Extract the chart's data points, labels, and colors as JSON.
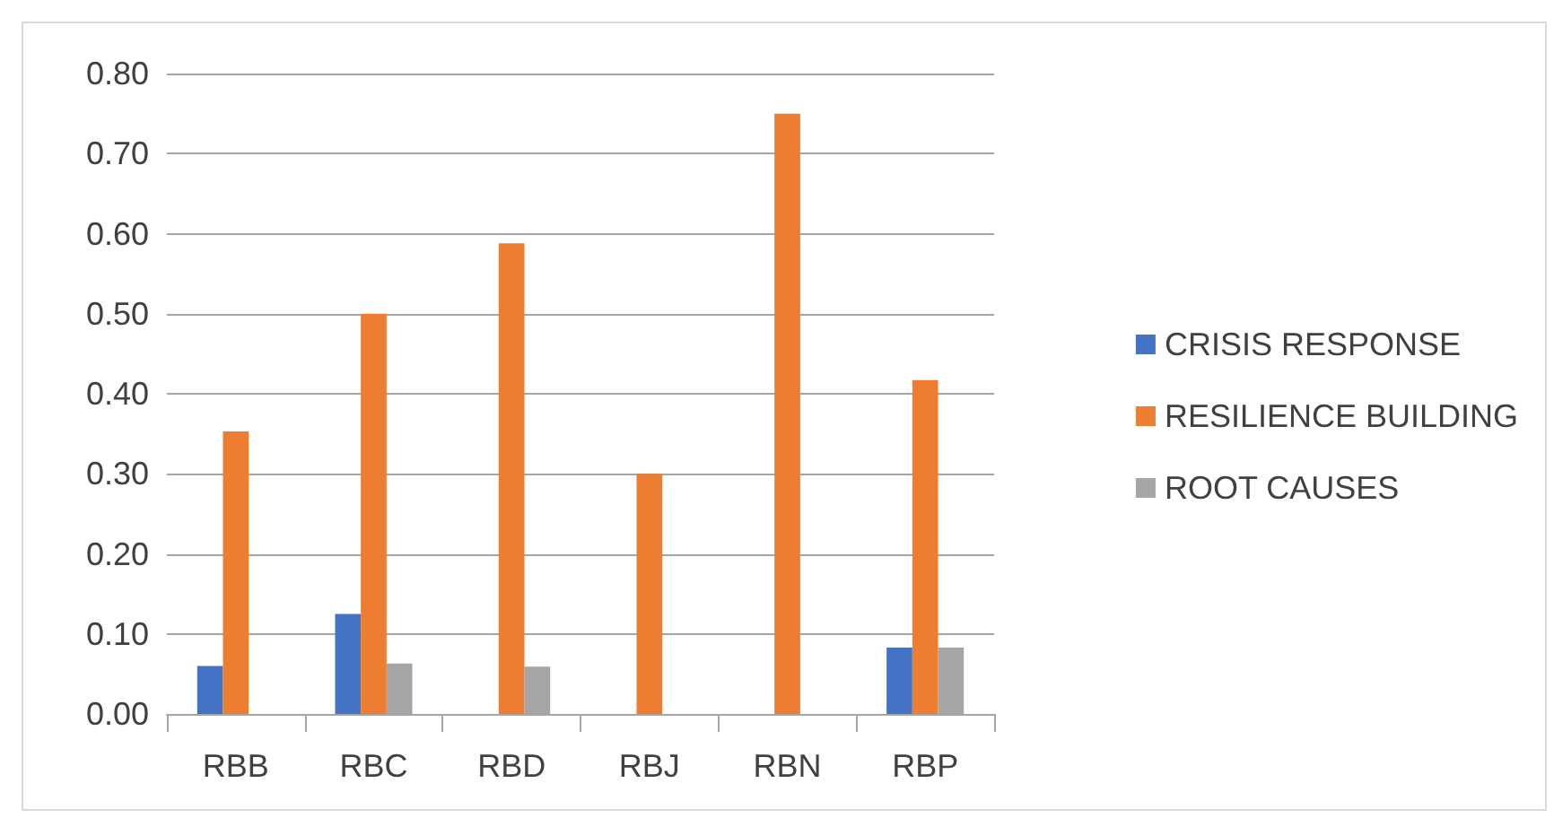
{
  "chart_data": {
    "type": "bar",
    "categories": [
      "RBB",
      "RBC",
      "RBD",
      "RBJ",
      "RBN",
      "RBP"
    ],
    "series": [
      {
        "name": "CRISIS RESPONSE",
        "color": "#4472c4",
        "values": [
          0.06,
          0.125,
          0,
          0,
          0,
          0.083
        ]
      },
      {
        "name": "RESILIENCE BUILDING",
        "color": "#ed7d31",
        "values": [
          0.353,
          0.5,
          0.588,
          0.3,
          0.75,
          0.417
        ]
      },
      {
        "name": "ROOT CAUSES",
        "color": "#a5a5a5",
        "values": [
          0,
          0.063,
          0.059,
          0,
          0,
          0.083
        ]
      }
    ],
    "ylim": [
      0,
      0.8
    ],
    "yticks": [
      {
        "value": 0,
        "label": "0.00"
      },
      {
        "value": 0.1,
        "label": "0.10"
      },
      {
        "value": 0.2,
        "label": "0.20"
      },
      {
        "value": 0.3,
        "label": "0.30"
      },
      {
        "value": 0.4,
        "label": "0.40"
      },
      {
        "value": 0.5,
        "label": "0.50"
      },
      {
        "value": 0.6,
        "label": "0.60"
      },
      {
        "value": 0.7,
        "label": "0.70"
      },
      {
        "value": 0.8,
        "label": "0.80"
      }
    ],
    "grid": "y",
    "legend": "right"
  }
}
